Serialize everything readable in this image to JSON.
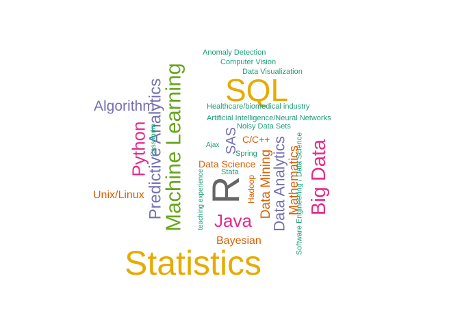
{
  "palette": {
    "teal": "#1b9e77",
    "orange": "#d95f02",
    "purple": "#7570b3",
    "pink": "#e7298a",
    "green": "#66a61e",
    "gold": "#e6ab02",
    "gray": "#666666"
  },
  "words": [
    {
      "text": "Statistics",
      "color": "gold"
    },
    {
      "text": "SQL",
      "color": "gold"
    },
    {
      "text": "R",
      "color": "gray"
    },
    {
      "text": "Machine Learning",
      "color": "green"
    },
    {
      "text": "Big Data",
      "color": "pink"
    },
    {
      "text": "Predictive Analytics",
      "color": "purple"
    },
    {
      "text": "Python",
      "color": "pink"
    },
    {
      "text": "Java",
      "color": "pink"
    },
    {
      "text": "Data Analytics",
      "color": "purple"
    },
    {
      "text": "Algorithm",
      "color": "purple"
    },
    {
      "text": "Data Mining",
      "color": "orange"
    },
    {
      "text": "Mathematics",
      "color": "orange"
    },
    {
      "text": "Bayesian",
      "color": "orange"
    },
    {
      "text": "SAS",
      "color": "purple"
    },
    {
      "text": "Unix/Linux",
      "color": "orange"
    },
    {
      "text": "Data Science",
      "color": "orange"
    },
    {
      "text": "C/C++",
      "color": "orange"
    },
    {
      "text": "Hadoop",
      "color": "orange"
    },
    {
      "text": "Software Engineering / Data Science",
      "color": "teal"
    },
    {
      "text": "Healthcare/biomedical industry",
      "color": "teal"
    },
    {
      "text": "Artificial Intelligence/Neural Networks",
      "color": "teal"
    },
    {
      "text": "Noisy Data Sets",
      "color": "teal"
    },
    {
      "text": "Anomaly Detection",
      "color": "teal"
    },
    {
      "text": "Computer Vision",
      "color": "teal"
    },
    {
      "text": "Data Visualization",
      "color": "teal"
    },
    {
      "text": "Cassandra",
      "color": "teal"
    },
    {
      "text": "Ajax",
      "color": "teal"
    },
    {
      "text": "Spring",
      "color": "teal"
    },
    {
      "text": "Stata",
      "color": "teal"
    },
    {
      "text": "teaching experience",
      "color": "teal"
    }
  ]
}
